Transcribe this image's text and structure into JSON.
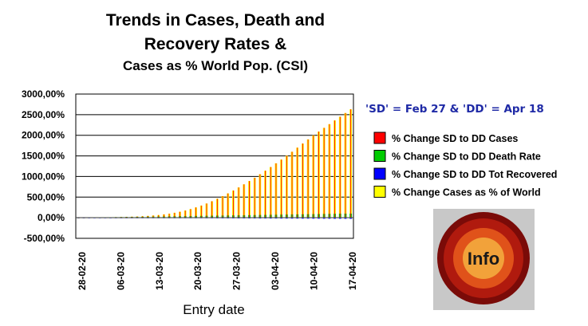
{
  "title_lines": [
    "Trends in Cases, Death and",
    "Recovery Rates &",
    "Cases as % World Pop. (CSI)"
  ],
  "note": "'SD' = Feb 27 & 'DD' = Apr 18",
  "logo_text": "Info",
  "colors": {
    "cases": "#ff0000",
    "death": "#00cc00",
    "recovered": "#0000ff",
    "world": "#ffff00"
  },
  "chart_data": {
    "type": "bar",
    "title": "Trends in Cases, Death and Recovery Rates & Cases as % World Pop. (CSI)",
    "xlabel": "Entry date",
    "ylabel": "",
    "ylim": [
      -500,
      3000
    ],
    "y_ticks": [
      "3000,00%",
      "2500,00%",
      "2000,00%",
      "1500,00%",
      "1000,00%",
      "500,00%",
      "0,00%",
      "-500,00%"
    ],
    "x_ticks": [
      "28-02-20",
      "06-03-20",
      "13-03-20",
      "20-03-20",
      "27-03-20",
      "03-04-20",
      "10-04-20",
      "17-04-20"
    ],
    "grid": "horizontal",
    "legend_position": "right",
    "legend": [
      "% Change SD to DD Cases",
      "% Change SD to DD Death Rate",
      "% Change SD to DD Tot Recovered",
      "% Change Cases as % of World"
    ],
    "categories": [
      "27-02",
      "28-02",
      "29-02",
      "01-03",
      "02-03",
      "03-03",
      "04-03",
      "05-03",
      "06-03",
      "07-03",
      "08-03",
      "09-03",
      "10-03",
      "11-03",
      "12-03",
      "13-03",
      "14-03",
      "15-03",
      "16-03",
      "17-03",
      "18-03",
      "19-03",
      "20-03",
      "21-03",
      "22-03",
      "23-03",
      "24-03",
      "25-03",
      "26-03",
      "27-03",
      "28-03",
      "29-03",
      "30-03",
      "31-03",
      "01-04",
      "02-04",
      "03-04",
      "04-04",
      "05-04",
      "06-04",
      "07-04",
      "08-04",
      "09-04",
      "10-04",
      "11-04",
      "12-04",
      "13-04",
      "14-04",
      "15-04",
      "16-04",
      "17-04",
      "18-04"
    ],
    "series": [
      {
        "name": "% Change SD to DD Cases",
        "color": "#ff0000",
        "values": [
          0,
          2,
          4,
          6,
          8,
          10,
          12,
          15,
          18,
          21,
          25,
          30,
          36,
          44,
          54,
          65,
          80,
          98,
          120,
          145,
          175,
          210,
          250,
          295,
          345,
          400,
          460,
          525,
          590,
          660,
          735,
          810,
          890,
          970,
          1055,
          1140,
          1230,
          1320,
          1410,
          1505,
          1600,
          1700,
          1800,
          1900,
          2000,
          2090,
          2180,
          2270,
          2360,
          2450,
          2540,
          2630
        ]
      },
      {
        "name": "% Change SD to DD Death Rate",
        "color": "#00cc00",
        "values": [
          0,
          2,
          4,
          6,
          8,
          10,
          12,
          14,
          16,
          18,
          20,
          22,
          24,
          26,
          28,
          30,
          32,
          34,
          36,
          38,
          40,
          42,
          44,
          46,
          48,
          50,
          52,
          54,
          56,
          58,
          60,
          62,
          64,
          66,
          68,
          70,
          72,
          74,
          76,
          78,
          80,
          82,
          84,
          86,
          88,
          90,
          92,
          94,
          96,
          98,
          99,
          100
        ]
      },
      {
        "name": "% Change SD to DD Tot Recovered",
        "color": "#0000ff",
        "values": [
          0,
          -1,
          -2,
          -2,
          -3,
          -3,
          -4,
          -4,
          -5,
          -5,
          -6,
          -6,
          -7,
          -7,
          -8,
          -8,
          -9,
          -9,
          -10,
          -10,
          -11,
          -11,
          -12,
          -12,
          -13,
          -13,
          -14,
          -14,
          -15,
          -15,
          -16,
          -16,
          -17,
          -17,
          -18,
          -18,
          -19,
          -19,
          -20,
          -20,
          -21,
          -21,
          -22,
          -22,
          -23,
          -23,
          -24,
          -24,
          -25,
          -25,
          -26,
          -26
        ]
      },
      {
        "name": "% Change Cases as % of World",
        "color": "#ffff00",
        "values": [
          0,
          2,
          4,
          6,
          8,
          10,
          12,
          15,
          18,
          21,
          25,
          30,
          36,
          44,
          54,
          65,
          80,
          98,
          120,
          145,
          175,
          210,
          250,
          295,
          345,
          400,
          460,
          525,
          590,
          660,
          735,
          810,
          890,
          970,
          1055,
          1140,
          1230,
          1320,
          1410,
          1505,
          1600,
          1700,
          1800,
          1900,
          2000,
          2090,
          2180,
          2270,
          2360,
          2450,
          2540,
          2630
        ]
      }
    ]
  }
}
